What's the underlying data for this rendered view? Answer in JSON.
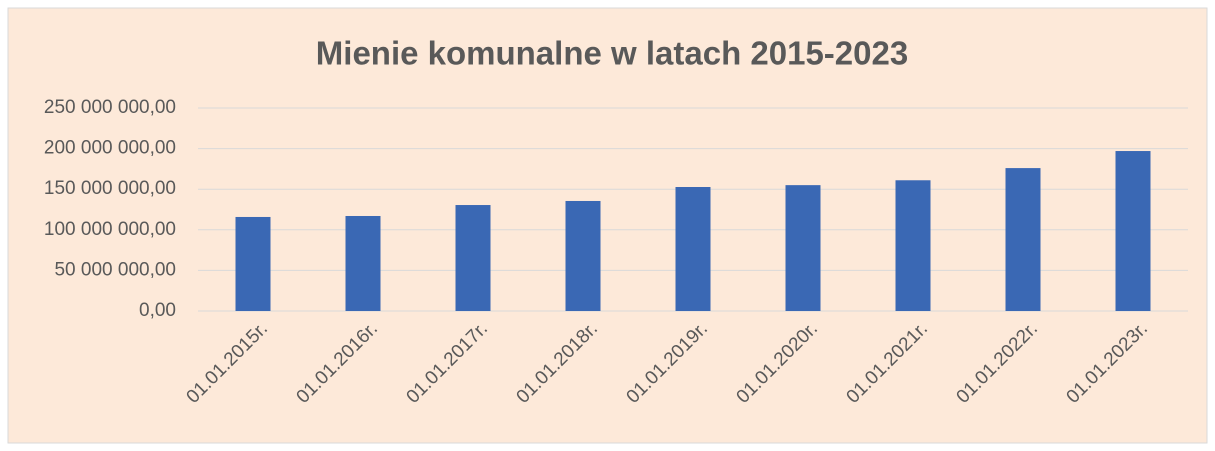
{
  "chart_data": {
    "type": "bar",
    "title": "Mienie komunalne w latach 2015-2023",
    "categories": [
      "01.01.2015r.",
      "01.01.2016r.",
      "01.01.2017r.",
      "01.01.2018r.",
      "01.01.2019r.",
      "01.01.2020r.",
      "01.01.2021r.",
      "01.01.2022r.",
      "01.01.2023r."
    ],
    "values": [
      115800000,
      117000000,
      130500000,
      135500000,
      152700000,
      155000000,
      161000000,
      176000000,
      197000000
    ],
    "color": "#3a68b4",
    "ylim": [
      0,
      250000000
    ],
    "yticks": [
      {
        "value": 0,
        "label": "0,00"
      },
      {
        "value": 50000000,
        "label": "50 000 000,00"
      },
      {
        "value": 100000000,
        "label": "100 000 000,00"
      },
      {
        "value": 150000000,
        "label": "150 000 000,00"
      },
      {
        "value": 200000000,
        "label": "200 000 000,00"
      },
      {
        "value": 250000000,
        "label": "250 000 000,00"
      }
    ],
    "grid": true
  }
}
